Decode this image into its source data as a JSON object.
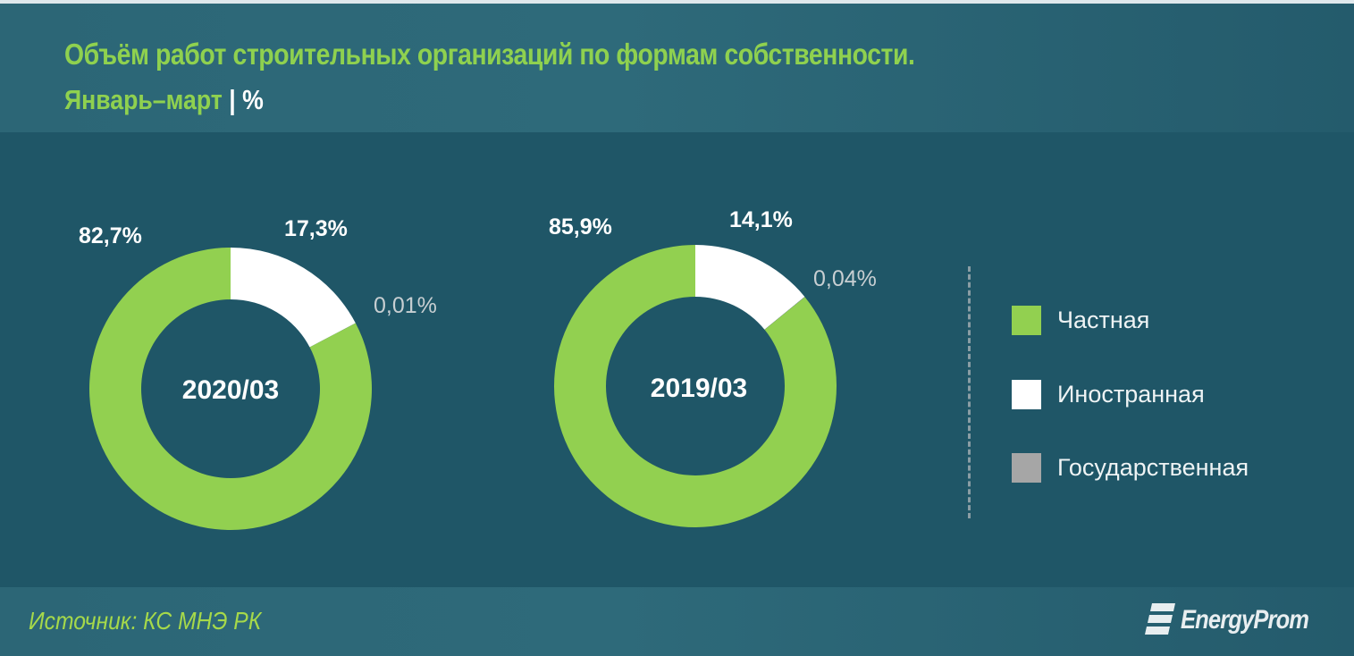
{
  "header": {
    "title": "Объём работ строительных организаций по формам собственности.",
    "subtitle": "Январь–март",
    "separator": "|",
    "unit": "%"
  },
  "colors": {
    "private": "#92d050",
    "foreign": "#ffffff",
    "state": "#a6a6a6",
    "background": "#1f5667",
    "title": "#8fd14f"
  },
  "donuts": [
    {
      "center_label": "2020/03",
      "labels": {
        "private": "82,7%",
        "foreign": "17,3%",
        "state": "0,01%"
      }
    },
    {
      "center_label": "2019/03",
      "labels": {
        "private": "85,9%",
        "foreign": "14,1%",
        "state": "0,04%"
      }
    }
  ],
  "legend": [
    {
      "label": "Частная",
      "color": "#92d050"
    },
    {
      "label": "Иностранная",
      "color": "#ffffff"
    },
    {
      "label": "Государственная",
      "color": "#a6a6a6"
    }
  ],
  "footer": {
    "source": "Источник: КС МНЭ РК",
    "logo": "EnergyProm"
  },
  "chart_data": [
    {
      "type": "pie",
      "variant": "donut",
      "title": "Объём работ строительных организаций по формам собственности. Январь–март | %",
      "center_label": "2020/03",
      "categories": [
        "Частная",
        "Иностранная",
        "Государственная"
      ],
      "values": [
        82.7,
        17.3,
        0.01
      ],
      "colors": [
        "#92d050",
        "#ffffff",
        "#a6a6a6"
      ],
      "legend_position": "right"
    },
    {
      "type": "pie",
      "variant": "donut",
      "title": "Объём работ строительных организаций по формам собственности. Январь–март | %",
      "center_label": "2019/03",
      "categories": [
        "Частная",
        "Иностранная",
        "Государственная"
      ],
      "values": [
        85.9,
        14.1,
        0.04
      ],
      "colors": [
        "#92d050",
        "#ffffff",
        "#a6a6a6"
      ],
      "legend_position": "right"
    }
  ]
}
